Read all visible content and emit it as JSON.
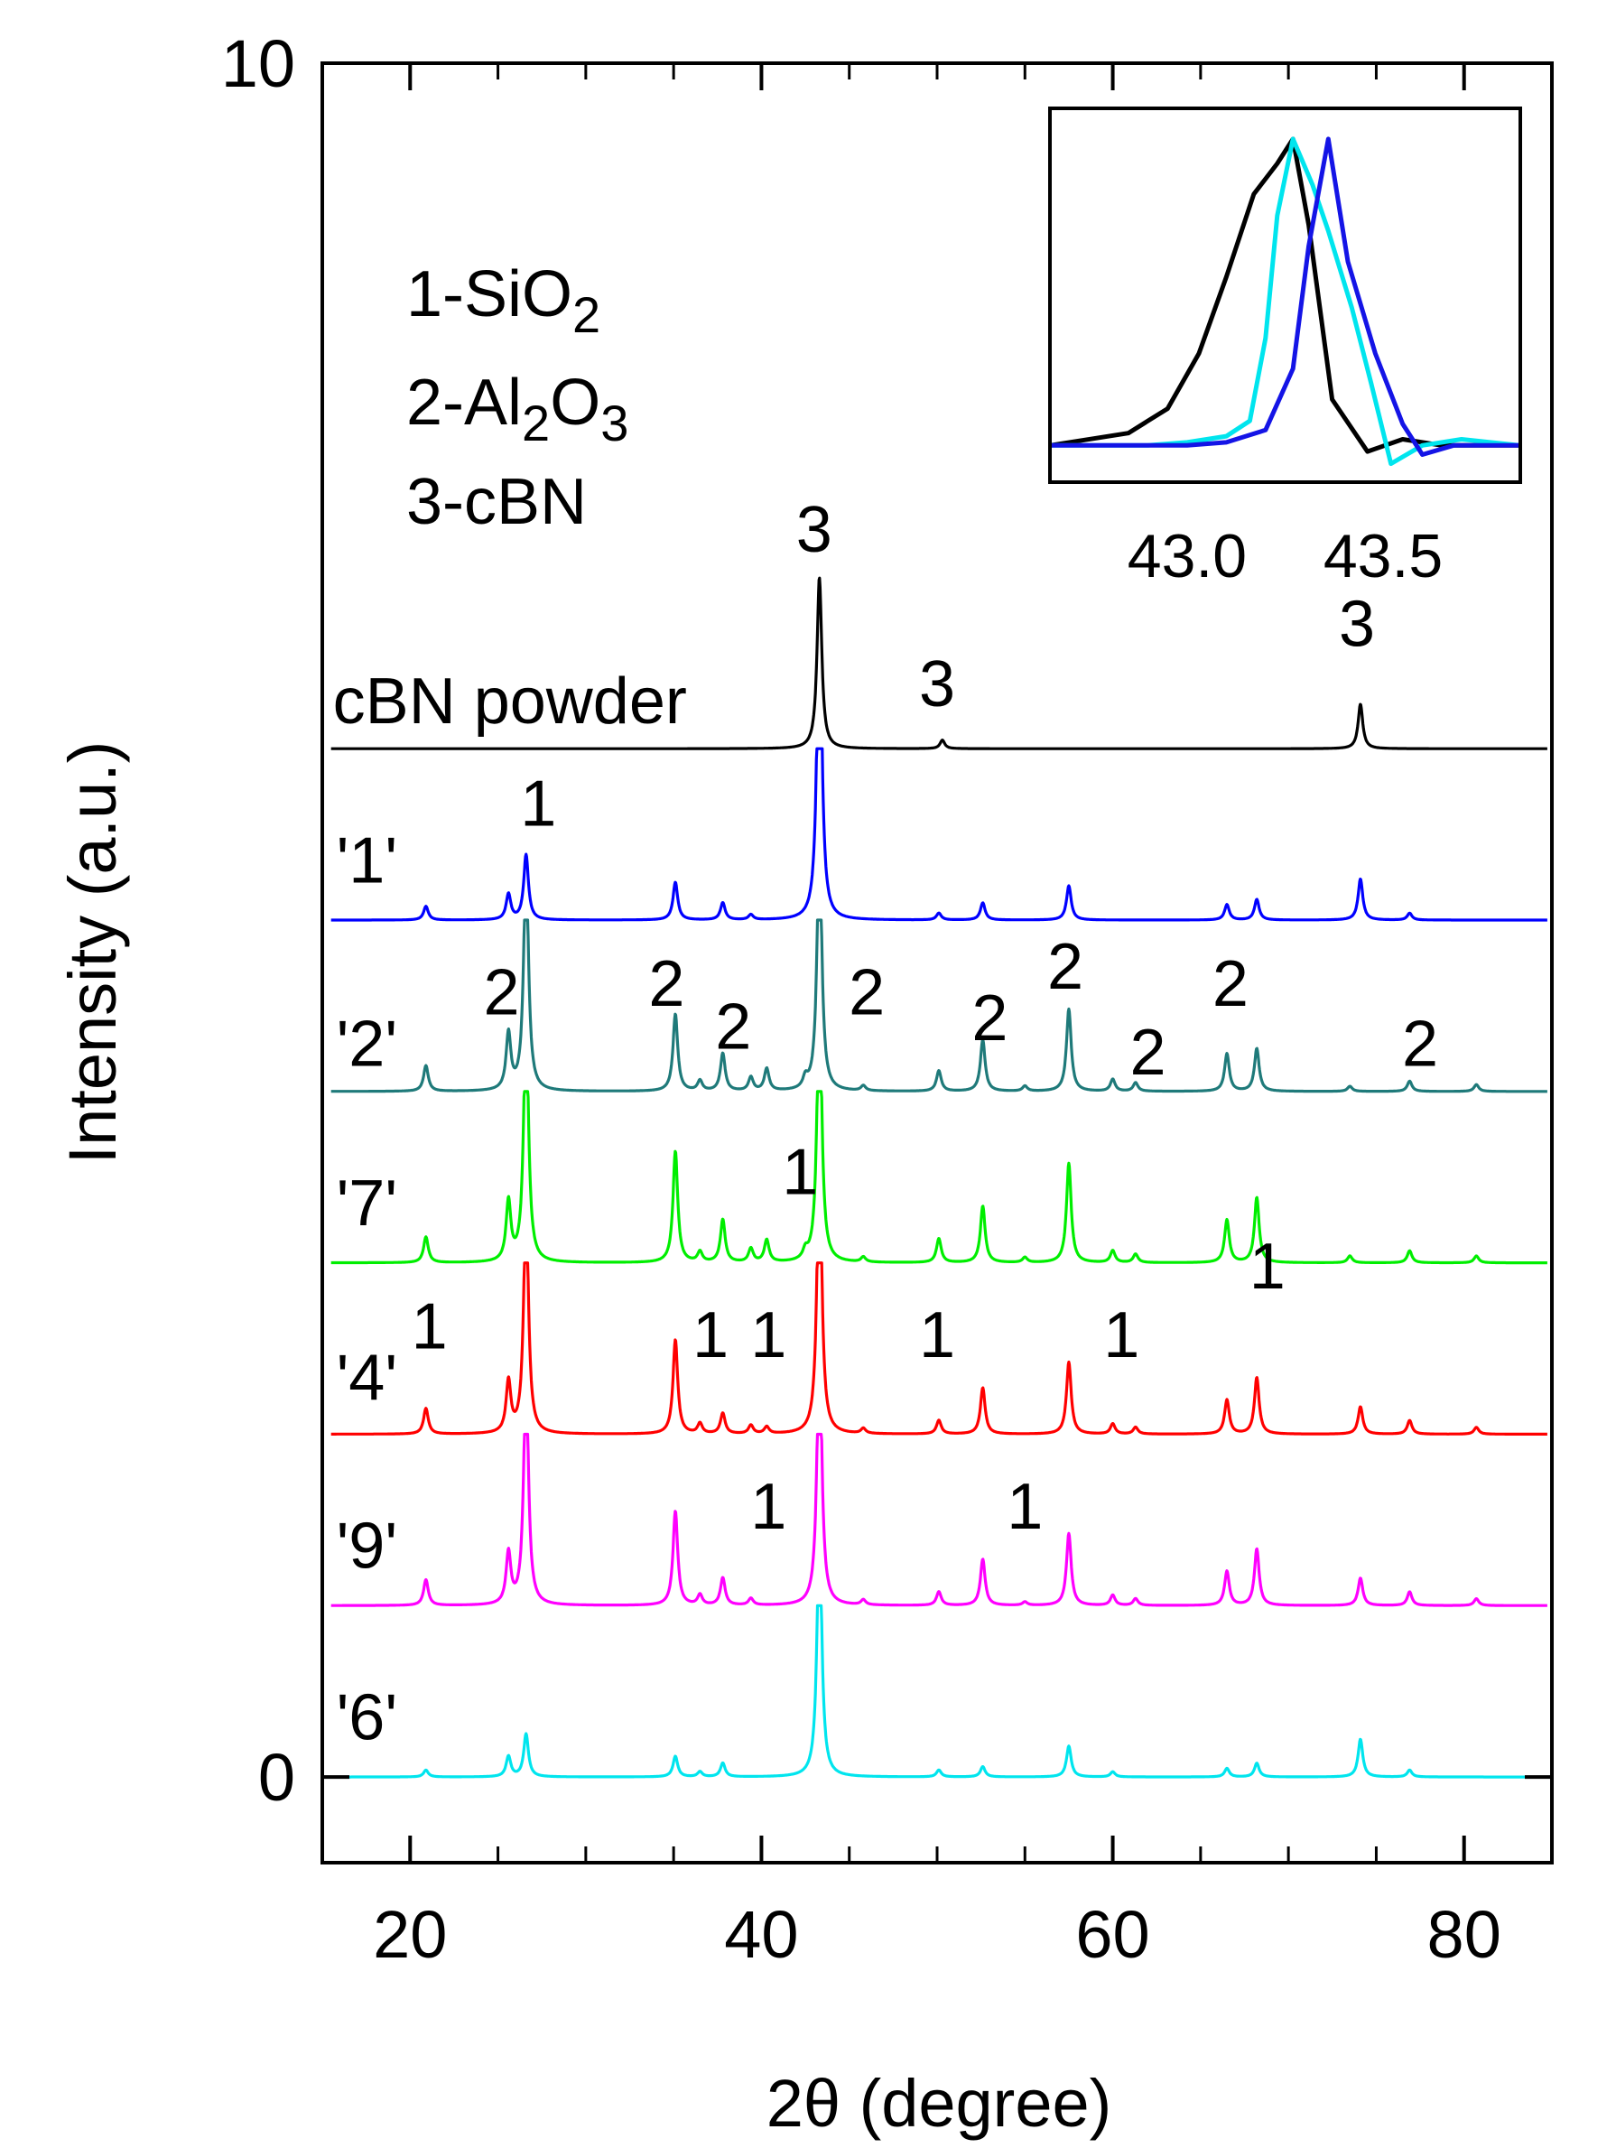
{
  "chart_data": {
    "type": "line",
    "title": "",
    "xlabel": "2θ (degree)",
    "ylabel": "Intensity (a.u.)",
    "xlim": [
      15,
      85
    ],
    "ylim": [
      -0.5,
      10
    ],
    "x_ticks": [
      20,
      40,
      60,
      80
    ],
    "x_tick_labels": [
      "20",
      "40",
      "60",
      "80"
    ],
    "x_minor_ticks": [
      25,
      30,
      35,
      45,
      50,
      55,
      65,
      70,
      75
    ],
    "y_ticks": [
      0,
      10
    ],
    "y_tick_labels": [
      "0",
      "10"
    ],
    "legend": {
      "placement": "top-left",
      "entries": [
        {
          "prefix": "1-SiO",
          "sub": "2",
          "rest": ""
        },
        {
          "prefix": "2-Al",
          "sub": "2",
          "mid": "O",
          "sub2": "3"
        },
        {
          "prefix": "3-cBN",
          "sub": "",
          "rest": ""
        }
      ]
    },
    "series": [
      {
        "name": "cBN powder",
        "color": "#000000",
        "baseline": 6.0,
        "peaks": [
          [
            43.3,
            1.0
          ],
          [
            50.3,
            0.05
          ],
          [
            74.1,
            0.26
          ]
        ]
      },
      {
        "name": "'1'",
        "color": "#0000ff",
        "baseline": 5.0,
        "clip": 1.0,
        "peaks": [
          [
            20.9,
            0.08
          ],
          [
            25.6,
            0.15
          ],
          [
            26.6,
            0.38
          ],
          [
            35.1,
            0.22
          ],
          [
            37.8,
            0.1
          ],
          [
            39.4,
            0.03
          ],
          [
            43.3,
            2.0
          ],
          [
            50.1,
            0.04
          ],
          [
            52.6,
            0.1
          ],
          [
            57.5,
            0.2
          ],
          [
            66.5,
            0.09
          ],
          [
            68.2,
            0.12
          ],
          [
            74.1,
            0.24
          ],
          [
            76.9,
            0.04
          ]
        ]
      },
      {
        "name": "'2'",
        "color": "#1f7a7a",
        "baseline": 4.0,
        "clip": 1.0,
        "peaks": [
          [
            20.9,
            0.15
          ],
          [
            25.6,
            0.33
          ],
          [
            26.6,
            1.4
          ],
          [
            35.1,
            0.45
          ],
          [
            36.5,
            0.06
          ],
          [
            37.8,
            0.22
          ],
          [
            39.4,
            0.08
          ],
          [
            40.3,
            0.13
          ],
          [
            42.5,
            0.06
          ],
          [
            43.3,
            1.5
          ],
          [
            45.8,
            0.03
          ],
          [
            50.1,
            0.12
          ],
          [
            52.6,
            0.3
          ],
          [
            55.0,
            0.03
          ],
          [
            57.5,
            0.48
          ],
          [
            60.0,
            0.07
          ],
          [
            61.3,
            0.05
          ],
          [
            66.5,
            0.22
          ],
          [
            68.2,
            0.25
          ],
          [
            73.5,
            0.03
          ],
          [
            76.9,
            0.06
          ],
          [
            80.7,
            0.04
          ]
        ]
      },
      {
        "name": "'7'",
        "color": "#00ee00",
        "baseline": 3.0,
        "clip": 1.0,
        "peaks": [
          [
            20.9,
            0.15
          ],
          [
            25.6,
            0.35
          ],
          [
            26.6,
            1.5
          ],
          [
            35.1,
            0.65
          ],
          [
            36.5,
            0.06
          ],
          [
            37.8,
            0.25
          ],
          [
            39.4,
            0.08
          ],
          [
            40.3,
            0.13
          ],
          [
            42.5,
            0.05
          ],
          [
            43.3,
            1.6
          ],
          [
            45.8,
            0.03
          ],
          [
            50.1,
            0.14
          ],
          [
            52.6,
            0.33
          ],
          [
            55.0,
            0.03
          ],
          [
            57.5,
            0.58
          ],
          [
            60.0,
            0.07
          ],
          [
            61.3,
            0.05
          ],
          [
            66.5,
            0.25
          ],
          [
            68.2,
            0.38
          ],
          [
            73.5,
            0.04
          ],
          [
            76.9,
            0.07
          ],
          [
            80.7,
            0.04
          ]
        ]
      },
      {
        "name": "'4'",
        "color": "#ff0000",
        "baseline": 2.0,
        "clip": 1.0,
        "peaks": [
          [
            20.9,
            0.15
          ],
          [
            25.6,
            0.3
          ],
          [
            26.6,
            1.4
          ],
          [
            35.1,
            0.55
          ],
          [
            36.5,
            0.06
          ],
          [
            37.8,
            0.12
          ],
          [
            39.4,
            0.05
          ],
          [
            40.3,
            0.04
          ],
          [
            43.3,
            1.7
          ],
          [
            45.8,
            0.03
          ],
          [
            50.1,
            0.08
          ],
          [
            52.6,
            0.27
          ],
          [
            57.5,
            0.42
          ],
          [
            60.0,
            0.06
          ],
          [
            61.3,
            0.04
          ],
          [
            66.5,
            0.2
          ],
          [
            68.2,
            0.33
          ],
          [
            74.1,
            0.16
          ],
          [
            76.9,
            0.08
          ],
          [
            80.7,
            0.04
          ]
        ]
      },
      {
        "name": "'9'",
        "color": "#ff00ff",
        "baseline": 1.0,
        "clip": 1.0,
        "peaks": [
          [
            20.9,
            0.15
          ],
          [
            25.6,
            0.3
          ],
          [
            26.6,
            1.4
          ],
          [
            35.1,
            0.55
          ],
          [
            36.5,
            0.06
          ],
          [
            37.8,
            0.16
          ],
          [
            39.4,
            0.04
          ],
          [
            43.3,
            1.6
          ],
          [
            45.8,
            0.03
          ],
          [
            50.1,
            0.08
          ],
          [
            52.6,
            0.27
          ],
          [
            55.0,
            0.02
          ],
          [
            57.5,
            0.42
          ],
          [
            60.0,
            0.06
          ],
          [
            61.3,
            0.04
          ],
          [
            66.5,
            0.2
          ],
          [
            68.2,
            0.33
          ],
          [
            74.1,
            0.16
          ],
          [
            76.9,
            0.08
          ],
          [
            80.7,
            0.04
          ]
        ]
      },
      {
        "name": "'6'",
        "color": "#00e5ee",
        "baseline": 0.0,
        "clip": 1.0,
        "peaks": [
          [
            20.9,
            0.04
          ],
          [
            25.6,
            0.12
          ],
          [
            26.6,
            0.25
          ],
          [
            35.1,
            0.12
          ],
          [
            36.5,
            0.03
          ],
          [
            37.8,
            0.08
          ],
          [
            43.3,
            1.5
          ],
          [
            50.1,
            0.04
          ],
          [
            52.6,
            0.06
          ],
          [
            57.5,
            0.18
          ],
          [
            60.0,
            0.03
          ],
          [
            66.5,
            0.05
          ],
          [
            68.2,
            0.08
          ],
          [
            74.1,
            0.22
          ],
          [
            76.9,
            0.04
          ]
        ]
      }
    ],
    "sample_labels": [
      {
        "text": "cBN powder",
        "x": 15.6,
        "y": 6.15
      },
      {
        "text": "'1'",
        "x": 15.8,
        "y": 5.22
      },
      {
        "text": "'2'",
        "x": 15.8,
        "y": 4.15
      },
      {
        "text": "'7'",
        "x": 15.8,
        "y": 3.22
      },
      {
        "text": "'4'",
        "x": 15.8,
        "y": 2.2
      },
      {
        "text": "'9'",
        "x": 15.8,
        "y": 1.22
      },
      {
        "text": "'6'",
        "x": 15.8,
        "y": 0.22
      }
    ],
    "peak_labels": [
      {
        "text": "3",
        "x": 43.0,
        "y": 7.15
      },
      {
        "text": "3",
        "x": 50.0,
        "y": 6.25
      },
      {
        "text": "3",
        "x": 73.9,
        "y": 6.6
      },
      {
        "text": "1",
        "x": 27.3,
        "y": 5.55
      },
      {
        "text": "2",
        "x": 25.2,
        "y": 4.45
      },
      {
        "text": "2",
        "x": 34.6,
        "y": 4.5
      },
      {
        "text": "2",
        "x": 38.4,
        "y": 4.25
      },
      {
        "text": "2",
        "x": 46.0,
        "y": 4.45
      },
      {
        "text": "2",
        "x": 53.0,
        "y": 4.3
      },
      {
        "text": "2",
        "x": 57.3,
        "y": 4.6
      },
      {
        "text": "2",
        "x": 62.0,
        "y": 4.1
      },
      {
        "text": "2",
        "x": 66.7,
        "y": 4.5
      },
      {
        "text": "2",
        "x": 77.5,
        "y": 4.15
      },
      {
        "text": "1",
        "x": 42.2,
        "y": 3.4
      },
      {
        "text": "1",
        "x": 21.1,
        "y": 2.5
      },
      {
        "text": "1",
        "x": 37.1,
        "y": 2.45
      },
      {
        "text": "1",
        "x": 40.4,
        "y": 2.45
      },
      {
        "text": "1",
        "x": 50.0,
        "y": 2.45
      },
      {
        "text": "1",
        "x": 60.5,
        "y": 2.45
      },
      {
        "text": "1",
        "x": 68.8,
        "y": 2.85
      },
      {
        "text": "1",
        "x": 40.4,
        "y": 1.45
      },
      {
        "text": "1",
        "x": 55.0,
        "y": 1.45
      }
    ],
    "inset": {
      "type": "line",
      "xlim": [
        42.65,
        43.85
      ],
      "ylim": [
        -0.12,
        1.1
      ],
      "x_ticks": [
        43.0,
        43.5
      ],
      "x_tick_labels": [
        "43.0",
        "43.5"
      ],
      "series": [
        {
          "name": "cBN powder",
          "color": "#000000",
          "x": [
            42.65,
            42.85,
            42.95,
            43.03,
            43.1,
            43.17,
            43.23,
            43.27,
            43.31,
            43.37,
            43.46,
            43.55,
            43.65,
            43.85
          ],
          "y": [
            0.0,
            0.04,
            0.12,
            0.3,
            0.55,
            0.82,
            0.92,
            1.0,
            0.72,
            0.15,
            -0.02,
            0.02,
            0.0,
            0.0
          ]
        },
        {
          "name": "'6'",
          "color": "#00e5ee",
          "x": [
            42.65,
            42.9,
            43.0,
            43.1,
            43.16,
            43.2,
            43.23,
            43.27,
            43.32,
            43.36,
            43.42,
            43.47,
            43.52,
            43.6,
            43.7,
            43.85
          ],
          "y": [
            0.0,
            0.0,
            0.01,
            0.03,
            0.08,
            0.35,
            0.75,
            1.0,
            0.85,
            0.7,
            0.45,
            0.2,
            -0.06,
            0.0,
            0.02,
            0.0
          ]
        },
        {
          "name": "'1'",
          "color": "#1414e6",
          "x": [
            42.65,
            43.0,
            43.1,
            43.2,
            43.27,
            43.31,
            43.36,
            43.41,
            43.48,
            43.55,
            43.6,
            43.68,
            43.85
          ],
          "y": [
            0.0,
            0.0,
            0.01,
            0.05,
            0.25,
            0.65,
            1.0,
            0.6,
            0.3,
            0.07,
            -0.03,
            0.0,
            0.0
          ]
        }
      ]
    }
  }
}
